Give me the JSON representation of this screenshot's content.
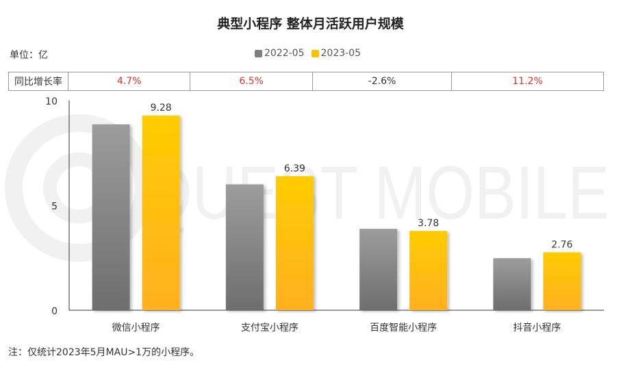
{
  "title": "典型小程序 整体月活跃用户规模",
  "unit_label": "单位：亿",
  "note": "注：仅统计2023年5月MAU>1万的小程序。",
  "watermark_text": "QUEST MOBILE",
  "growth_row": {
    "label": "同比增长率",
    "values": [
      "4.7%",
      "6.5%",
      "-2.6%",
      "11.2%"
    ]
  },
  "colors": {
    "series_2022": "#8a8a8a",
    "series_2023": "#ffc000",
    "positive": "#e0312b"
  },
  "chart_data": {
    "type": "bar",
    "categories": [
      "微信小程序",
      "支付宝小程序",
      "百度智能小程序",
      "抖音小程序"
    ],
    "series": [
      {
        "name": "2022-05",
        "values": [
          8.86,
          6.0,
          3.88,
          2.48
        ],
        "labeled": false
      },
      {
        "name": "2023-05",
        "values": [
          9.28,
          6.39,
          3.78,
          2.76
        ],
        "labeled": true
      }
    ],
    "y_ticks": [
      "0",
      "5",
      "10"
    ],
    "ylim": [
      0,
      10
    ],
    "legend_position": "top-center",
    "grid": false
  }
}
